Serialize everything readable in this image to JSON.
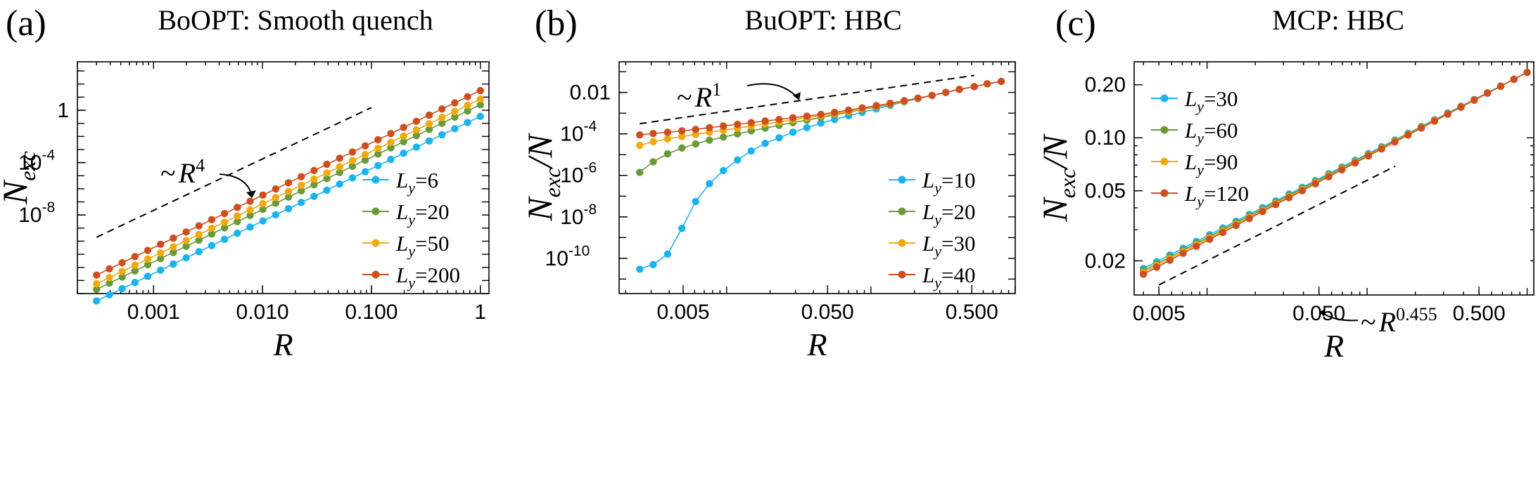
{
  "colors": {
    "Ly_a": "#1ab3ee",
    "Ly_b": "#6a9a37",
    "Ly_c": "#eeaa10",
    "Ly_d": "#cf4e1f",
    "guide": "#000000"
  },
  "chart_data": [
    {
      "type": "line",
      "panel": "(a)",
      "title": "BoOPT: Smooth quench",
      "xlabel": "R",
      "ylabel": "N",
      "ylabel_sub": "exc",
      "xscale": "log",
      "yscale": "log",
      "xlim": [
        0.0002,
        1.2
      ],
      "ylim": [
        1e-14,
        5000
      ],
      "xticks": [
        {
          "value": 0.001,
          "label": "0.001"
        },
        {
          "value": 0.01,
          "label": "0.010"
        },
        {
          "value": 0.1,
          "label": "0.100"
        },
        {
          "value": 1,
          "label": "1"
        }
      ],
      "yticks": [
        {
          "value": 1e-08,
          "label": "10",
          "exp": "-8"
        },
        {
          "value": 0.0001,
          "label": "10",
          "exp": "-4"
        },
        {
          "value": 1,
          "label": "1",
          "exp": ""
        }
      ],
      "annotation": {
        "prefix": "~",
        "var": "R",
        "exp": "4",
        "guide_x": [
          0.0003,
          0.1
        ],
        "guide_y": [
          2e-10,
          1.6
        ]
      },
      "legend_loc": "lower-right",
      "series": [
        {
          "name": "Ly=6",
          "sym": "L",
          "sub": "y",
          "val": "=6",
          "x_range": [
            0.0003,
            1
          ],
          "y_end": 0.34,
          "slope": 4
        },
        {
          "name": "Ly=20",
          "sym": "L",
          "sub": "y",
          "val": "=20",
          "x_range": [
            0.0003,
            1
          ],
          "y_end": 2.6,
          "slope": 4
        },
        {
          "name": "Ly=50",
          "sym": "L",
          "sub": "y",
          "val": "=50",
          "x_range": [
            0.0003,
            1
          ],
          "y_end": 7,
          "slope": 4
        },
        {
          "name": "Ly=200",
          "sym": "L",
          "sub": "y",
          "val": "=200",
          "x_range": [
            0.0003,
            1
          ],
          "y_end": 32,
          "slope": 4
        }
      ]
    },
    {
      "type": "line",
      "panel": "(b)",
      "title": "BuOPT: HBC",
      "xlabel": "R",
      "ylabel": "N",
      "ylabel_sub": "exc",
      "ylabel_tail": "/N",
      "xscale": "log",
      "yscale": "log",
      "xlim": [
        0.0018,
        1.0
      ],
      "ylim": [
        2e-12,
        0.3
      ],
      "xticks": [
        {
          "value": 0.005,
          "label": "0.005"
        },
        {
          "value": 0.05,
          "label": "0.050"
        },
        {
          "value": 0.5,
          "label": "0.500"
        }
      ],
      "yticks": [
        {
          "value": 1e-10,
          "label": "10",
          "exp": "-10"
        },
        {
          "value": 1e-08,
          "label": "10",
          "exp": "-8"
        },
        {
          "value": 1e-06,
          "label": "10",
          "exp": "-6"
        },
        {
          "value": 0.0001,
          "label": "10",
          "exp": "-4"
        },
        {
          "value": 0.01,
          "label": "0.01",
          "exp": ""
        }
      ],
      "annotation": {
        "prefix": "~",
        "var": "R",
        "exp": "1",
        "guide_x": [
          0.0025,
          0.52
        ],
        "guide_y": [
          0.00031,
          0.066
        ]
      },
      "legend_loc": "lower-right",
      "series": [
        {
          "name": "Ly=10",
          "sym": "L",
          "sub": "y",
          "val": "=10",
          "x": [
            0.0025,
            0.0031,
            0.0039,
            0.0049,
            0.0061,
            0.0076,
            0.0095,
            0.0119,
            0.0148,
            0.0185,
            0.0231,
            0.0288,
            0.036,
            0.045,
            0.056,
            0.07,
            0.087,
            0.109,
            0.136,
            0.17,
            0.212,
            0.265,
            0.33,
            0.41,
            0.52,
            0.64,
            0.8
          ],
          "y": [
            3e-11,
            5e-11,
            1.6e-10,
            2.8e-09,
            5.5e-08,
            4e-07,
            1.7e-06,
            5.5e-06,
            1.5e-05,
            3.5e-05,
            6.5e-05,
            0.00012,
            0.0002,
            0.00033,
            0.0005,
            0.00075,
            0.0011,
            0.0016,
            0.0024,
            0.0035,
            0.005,
            0.0071,
            0.01,
            0.014,
            0.019,
            0.026,
            0.034
          ]
        },
        {
          "name": "Ly=20",
          "sym": "L",
          "sub": "y",
          "val": "=20",
          "x": [
            0.0025,
            0.0031,
            0.0039,
            0.0049,
            0.0061,
            0.0076,
            0.0095,
            0.0119,
            0.0148,
            0.0185,
            0.0231,
            0.0288,
            0.036,
            0.045,
            0.056,
            0.07,
            0.087,
            0.109,
            0.136,
            0.17,
            0.212,
            0.265,
            0.33,
            0.41,
            0.52,
            0.64,
            0.8
          ],
          "y": [
            1.4e-06,
            4.5e-06,
            1.1e-05,
            2.1e-05,
            3.3e-05,
            5e-05,
            7e-05,
            0.0001,
            0.00014,
            0.00019,
            0.00026,
            0.00035,
            0.00046,
            0.00062,
            0.00082,
            0.0011,
            0.0015,
            0.002,
            0.0027,
            0.0037,
            0.0052,
            0.0072,
            0.01,
            0.014,
            0.019,
            0.026,
            0.034
          ]
        },
        {
          "name": "Ly=30",
          "sym": "L",
          "sub": "y",
          "val": "=30",
          "x": [
            0.0025,
            0.0031,
            0.0039,
            0.0049,
            0.0061,
            0.0076,
            0.0095,
            0.0119,
            0.0148,
            0.0185,
            0.0231,
            0.0288,
            0.036,
            0.045,
            0.056,
            0.07,
            0.087,
            0.109,
            0.136,
            0.17,
            0.212,
            0.265,
            0.33,
            0.41,
            0.52,
            0.64,
            0.8
          ],
          "y": [
            2.8e-05,
            4.2e-05,
            5.8e-05,
            7.5e-05,
            9.5e-05,
            0.00012,
            0.00015,
            0.00019,
            0.00024,
            0.0003,
            0.00038,
            0.00048,
            0.0006,
            0.00076,
            0.00096,
            0.0012,
            0.0016,
            0.0021,
            0.0028,
            0.0038,
            0.0052,
            0.0072,
            0.01,
            0.014,
            0.019,
            0.026,
            0.034
          ]
        },
        {
          "name": "Ly=40",
          "sym": "L",
          "sub": "y",
          "val": "=40",
          "x": [
            0.0025,
            0.0031,
            0.0039,
            0.0049,
            0.0061,
            0.0076,
            0.0095,
            0.0119,
            0.0148,
            0.0185,
            0.0231,
            0.0288,
            0.036,
            0.045,
            0.056,
            0.07,
            0.087,
            0.109,
            0.136,
            0.17,
            0.212,
            0.265,
            0.33,
            0.41,
            0.52,
            0.64,
            0.8
          ],
          "y": [
            9e-05,
            0.000105,
            0.00012,
            0.00014,
            0.000165,
            0.0002,
            0.00024,
            0.00029,
            0.00035,
            0.00042,
            0.0005,
            0.0006,
            0.00072,
            0.00088,
            0.0011,
            0.0014,
            0.0018,
            0.0023,
            0.003,
            0.004,
            0.0053,
            0.0072,
            0.01,
            0.014,
            0.019,
            0.026,
            0.034
          ]
        }
      ]
    },
    {
      "type": "line",
      "panel": "(c)",
      "title": "MCP: HBC",
      "xlabel": "R",
      "ylabel": "N",
      "ylabel_sub": "exc",
      "ylabel_tail": "/N",
      "xscale": "log",
      "yscale": "log",
      "xlim": [
        0.0035,
        1.1
      ],
      "ylim": [
        0.0128,
        0.27
      ],
      "xticks": [
        {
          "value": 0.005,
          "label": "0.005"
        },
        {
          "value": 0.05,
          "label": "0.050"
        },
        {
          "value": 0.5,
          "label": "0.500"
        }
      ],
      "yticks": [
        {
          "value": 0.02,
          "label": "0.02",
          "exp": ""
        },
        {
          "value": 0.05,
          "label": "0.05",
          "exp": ""
        },
        {
          "value": 0.1,
          "label": "0.10",
          "exp": ""
        },
        {
          "value": 0.2,
          "label": "0.20",
          "exp": ""
        }
      ],
      "annotation": {
        "prefix": "~",
        "var": "R",
        "exp": "0.455",
        "guide_x": [
          0.005,
          0.15
        ],
        "guide_y": [
          0.0146,
          0.069
        ]
      },
      "legend_loc": "upper-left",
      "series": [
        {
          "name": "Ly=30",
          "sym": "L",
          "sub": "y",
          "val": "=30",
          "x_range": [
            0.004,
            1.0
          ],
          "y_pts": [
            0.0181,
            0.235
          ]
        },
        {
          "name": "Ly=60",
          "sym": "L",
          "sub": "y",
          "val": "=60",
          "x_range": [
            0.004,
            1.0
          ],
          "y_pts": [
            0.0176,
            0.235
          ]
        },
        {
          "name": "Ly=90",
          "sym": "L",
          "sub": "y",
          "val": "=90",
          "x_range": [
            0.004,
            1.0
          ],
          "y_pts": [
            0.0172,
            0.235
          ]
        },
        {
          "name": "Ly=120",
          "sym": "L",
          "sub": "y",
          "val": "=120",
          "x_range": [
            0.004,
            1.0
          ],
          "y_pts": [
            0.0168,
            0.235
          ]
        }
      ]
    }
  ]
}
